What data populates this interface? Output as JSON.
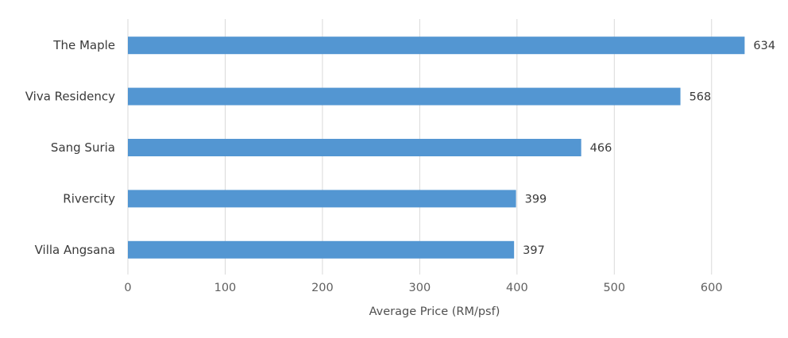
{
  "chart_data": {
    "type": "bar",
    "orientation": "horizontal",
    "title": "",
    "xlabel": "Average Price (RM/psf)",
    "ylabel": "",
    "categories": [
      "The Maple",
      "Viva Residency",
      "Sang Suria",
      "Rivercity",
      "Villa Angsana"
    ],
    "values": [
      634,
      568,
      466,
      399,
      397
    ],
    "xlim": [
      0,
      650
    ],
    "xticks": [
      0,
      100,
      200,
      300,
      400,
      500,
      600
    ],
    "grid": true,
    "data_labels": true,
    "bar_color": "#5396d2",
    "grid_color": "#d9d9d9",
    "legend": "none"
  }
}
